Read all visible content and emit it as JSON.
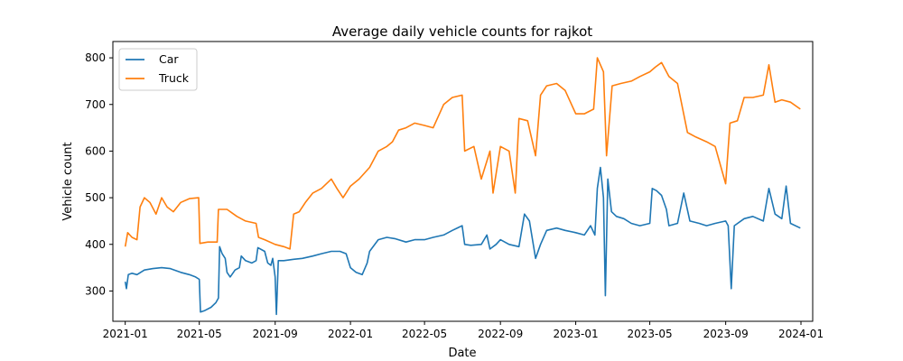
{
  "chart_data": {
    "type": "line",
    "title": "Average daily vehicle counts for rajkot",
    "xlabel": "Date",
    "ylabel": "Vehicle count",
    "xlim": [
      "2020-12-12",
      "2024-01-20"
    ],
    "ylim": [
      235,
      835
    ],
    "x_ticks": [
      "2021-01",
      "2021-05",
      "2021-09",
      "2022-01",
      "2022-05",
      "2022-09",
      "2023-01",
      "2023-05",
      "2023-09",
      "2024-01"
    ],
    "y_ticks": [
      300,
      400,
      500,
      600,
      700,
      800
    ],
    "grid": false,
    "legend": "top-left",
    "series": [
      {
        "name": "Car",
        "color": "#1f77b4",
        "points": [
          [
            "2021-01-01",
            320
          ],
          [
            "2021-01-03",
            305
          ],
          [
            "2021-01-06",
            335
          ],
          [
            "2021-01-12",
            338
          ],
          [
            "2021-01-20",
            335
          ],
          [
            "2021-02-01",
            345
          ],
          [
            "2021-02-15",
            348
          ],
          [
            "2021-03-01",
            350
          ],
          [
            "2021-03-15",
            348
          ],
          [
            "2021-04-01",
            340
          ],
          [
            "2021-04-15",
            335
          ],
          [
            "2021-04-25",
            330
          ],
          [
            "2021-05-01",
            325
          ],
          [
            "2021-05-03",
            255
          ],
          [
            "2021-05-10",
            258
          ],
          [
            "2021-05-20",
            265
          ],
          [
            "2021-05-28",
            275
          ],
          [
            "2021-06-01",
            285
          ],
          [
            "2021-06-03",
            395
          ],
          [
            "2021-06-07",
            380
          ],
          [
            "2021-06-12",
            370
          ],
          [
            "2021-06-15",
            340
          ],
          [
            "2021-06-20",
            330
          ],
          [
            "2021-06-28",
            345
          ],
          [
            "2021-07-05",
            350
          ],
          [
            "2021-07-08",
            375
          ],
          [
            "2021-07-15",
            365
          ],
          [
            "2021-07-25",
            360
          ],
          [
            "2021-08-01",
            365
          ],
          [
            "2021-08-04",
            393
          ],
          [
            "2021-08-15",
            385
          ],
          [
            "2021-08-20",
            360
          ],
          [
            "2021-08-25",
            355
          ],
          [
            "2021-08-28",
            370
          ],
          [
            "2021-09-01",
            330
          ],
          [
            "2021-09-03",
            250
          ],
          [
            "2021-09-06",
            365
          ],
          [
            "2021-09-15",
            365
          ],
          [
            "2021-10-01",
            368
          ],
          [
            "2021-10-15",
            370
          ],
          [
            "2021-11-01",
            375
          ],
          [
            "2021-11-15",
            380
          ],
          [
            "2021-12-01",
            385
          ],
          [
            "2021-12-15",
            385
          ],
          [
            "2021-12-25",
            380
          ],
          [
            "2022-01-01",
            350
          ],
          [
            "2022-01-10",
            340
          ],
          [
            "2022-01-20",
            335
          ],
          [
            "2022-01-28",
            360
          ],
          [
            "2022-02-01",
            385
          ],
          [
            "2022-02-15",
            410
          ],
          [
            "2022-03-01",
            415
          ],
          [
            "2022-03-15",
            412
          ],
          [
            "2022-04-01",
            405
          ],
          [
            "2022-04-15",
            410
          ],
          [
            "2022-05-01",
            410
          ],
          [
            "2022-05-15",
            415
          ],
          [
            "2022-06-01",
            420
          ],
          [
            "2022-06-15",
            430
          ],
          [
            "2022-07-01",
            440
          ],
          [
            "2022-07-05",
            400
          ],
          [
            "2022-07-15",
            398
          ],
          [
            "2022-08-01",
            400
          ],
          [
            "2022-08-10",
            420
          ],
          [
            "2022-08-15",
            390
          ],
          [
            "2022-08-25",
            400
          ],
          [
            "2022-09-01",
            410
          ],
          [
            "2022-09-15",
            400
          ],
          [
            "2022-10-01",
            395
          ],
          [
            "2022-10-10",
            465
          ],
          [
            "2022-10-18",
            450
          ],
          [
            "2022-10-28",
            370
          ],
          [
            "2022-11-05",
            400
          ],
          [
            "2022-11-15",
            430
          ],
          [
            "2022-12-01",
            435
          ],
          [
            "2022-12-15",
            430
          ],
          [
            "2023-01-01",
            425
          ],
          [
            "2023-01-15",
            420
          ],
          [
            "2023-01-25",
            440
          ],
          [
            "2023-02-01",
            420
          ],
          [
            "2023-02-05",
            520
          ],
          [
            "2023-02-10",
            565
          ],
          [
            "2023-02-15",
            500
          ],
          [
            "2023-02-18",
            290
          ],
          [
            "2023-02-22",
            540
          ],
          [
            "2023-02-28",
            470
          ],
          [
            "2023-03-08",
            460
          ],
          [
            "2023-03-20",
            455
          ],
          [
            "2023-04-01",
            445
          ],
          [
            "2023-04-15",
            440
          ],
          [
            "2023-05-01",
            445
          ],
          [
            "2023-05-05",
            520
          ],
          [
            "2023-05-12",
            515
          ],
          [
            "2023-05-20",
            505
          ],
          [
            "2023-05-28",
            475
          ],
          [
            "2023-06-01",
            440
          ],
          [
            "2023-06-15",
            445
          ],
          [
            "2023-06-25",
            510
          ],
          [
            "2023-07-05",
            450
          ],
          [
            "2023-07-20",
            445
          ],
          [
            "2023-08-01",
            440
          ],
          [
            "2023-08-15",
            445
          ],
          [
            "2023-09-01",
            450
          ],
          [
            "2023-09-05",
            440
          ],
          [
            "2023-09-10",
            305
          ],
          [
            "2023-09-15",
            440
          ],
          [
            "2023-10-01",
            455
          ],
          [
            "2023-10-15",
            460
          ],
          [
            "2023-11-01",
            450
          ],
          [
            "2023-11-10",
            520
          ],
          [
            "2023-11-20",
            465
          ],
          [
            "2023-12-01",
            455
          ],
          [
            "2023-12-08",
            525
          ],
          [
            "2023-12-15",
            445
          ],
          [
            "2023-12-31",
            435
          ]
        ]
      },
      {
        "name": "Truck",
        "color": "#ff7f0e",
        "points": [
          [
            "2021-01-01",
            395
          ],
          [
            "2021-01-05",
            425
          ],
          [
            "2021-01-12",
            415
          ],
          [
            "2021-01-20",
            410
          ],
          [
            "2021-01-25",
            480
          ],
          [
            "2021-02-01",
            500
          ],
          [
            "2021-02-10",
            490
          ],
          [
            "2021-02-20",
            465
          ],
          [
            "2021-03-01",
            500
          ],
          [
            "2021-03-10",
            480
          ],
          [
            "2021-03-20",
            470
          ],
          [
            "2021-04-01",
            490
          ],
          [
            "2021-04-15",
            498
          ],
          [
            "2021-04-30",
            500
          ],
          [
            "2021-05-02",
            402
          ],
          [
            "2021-05-15",
            405
          ],
          [
            "2021-05-30",
            405
          ],
          [
            "2021-06-01",
            475
          ],
          [
            "2021-06-15",
            475
          ],
          [
            "2021-07-01",
            460
          ],
          [
            "2021-07-15",
            450
          ],
          [
            "2021-08-01",
            445
          ],
          [
            "2021-08-05",
            415
          ],
          [
            "2021-08-15",
            410
          ],
          [
            "2021-09-01",
            400
          ],
          [
            "2021-09-15",
            395
          ],
          [
            "2021-09-25",
            390
          ],
          [
            "2021-10-01",
            465
          ],
          [
            "2021-10-10",
            470
          ],
          [
            "2021-10-20",
            490
          ],
          [
            "2021-11-01",
            510
          ],
          [
            "2021-11-15",
            520
          ],
          [
            "2021-12-01",
            540
          ],
          [
            "2021-12-10",
            520
          ],
          [
            "2021-12-20",
            500
          ],
          [
            "2022-01-01",
            525
          ],
          [
            "2022-01-15",
            540
          ],
          [
            "2022-02-01",
            565
          ],
          [
            "2022-02-15",
            600
          ],
          [
            "2022-03-01",
            610
          ],
          [
            "2022-03-10",
            620
          ],
          [
            "2022-03-20",
            645
          ],
          [
            "2022-04-01",
            650
          ],
          [
            "2022-04-15",
            660
          ],
          [
            "2022-05-01",
            655
          ],
          [
            "2022-05-15",
            650
          ],
          [
            "2022-06-01",
            700
          ],
          [
            "2022-06-15",
            715
          ],
          [
            "2022-07-01",
            720
          ],
          [
            "2022-07-05",
            600
          ],
          [
            "2022-07-20",
            610
          ],
          [
            "2022-08-01",
            540
          ],
          [
            "2022-08-15",
            600
          ],
          [
            "2022-08-20",
            510
          ],
          [
            "2022-09-01",
            610
          ],
          [
            "2022-09-15",
            600
          ],
          [
            "2022-09-25",
            510
          ],
          [
            "2022-10-01",
            670
          ],
          [
            "2022-10-15",
            665
          ],
          [
            "2022-10-28",
            590
          ],
          [
            "2022-11-05",
            720
          ],
          [
            "2022-11-15",
            740
          ],
          [
            "2022-12-01",
            745
          ],
          [
            "2022-12-15",
            730
          ],
          [
            "2023-01-01",
            680
          ],
          [
            "2023-01-15",
            680
          ],
          [
            "2023-01-30",
            690
          ],
          [
            "2023-02-05",
            800
          ],
          [
            "2023-02-15",
            770
          ],
          [
            "2023-02-20",
            590
          ],
          [
            "2023-03-01",
            740
          ],
          [
            "2023-03-15",
            745
          ],
          [
            "2023-04-01",
            750
          ],
          [
            "2023-04-15",
            760
          ],
          [
            "2023-05-01",
            770
          ],
          [
            "2023-05-10",
            780
          ],
          [
            "2023-05-20",
            790
          ],
          [
            "2023-06-01",
            760
          ],
          [
            "2023-06-15",
            745
          ],
          [
            "2023-07-01",
            640
          ],
          [
            "2023-07-15",
            630
          ],
          [
            "2023-08-01",
            620
          ],
          [
            "2023-08-15",
            610
          ],
          [
            "2023-09-01",
            530
          ],
          [
            "2023-09-08",
            660
          ],
          [
            "2023-09-20",
            665
          ],
          [
            "2023-10-01",
            715
          ],
          [
            "2023-10-15",
            715
          ],
          [
            "2023-11-01",
            720
          ],
          [
            "2023-11-10",
            785
          ],
          [
            "2023-11-20",
            705
          ],
          [
            "2023-12-01",
            710
          ],
          [
            "2023-12-15",
            705
          ],
          [
            "2023-12-31",
            690
          ]
        ]
      }
    ]
  }
}
